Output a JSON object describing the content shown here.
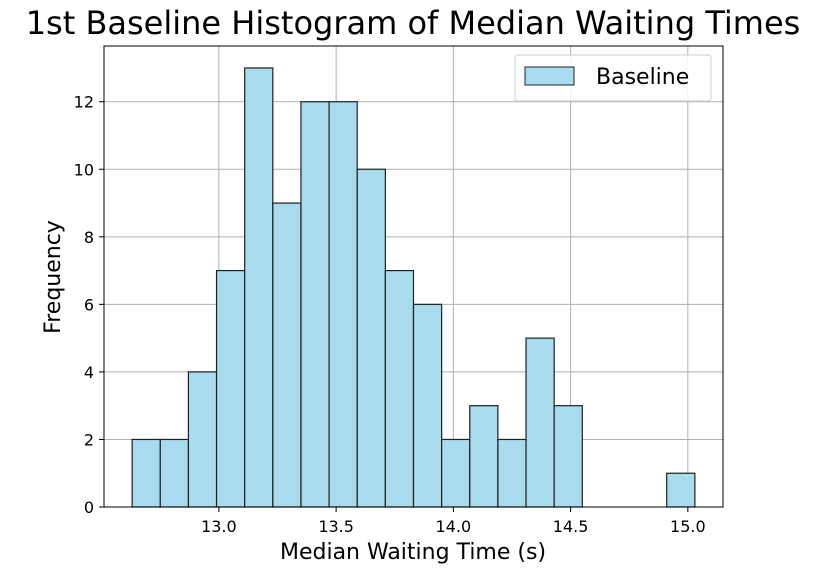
{
  "chart_data": {
    "type": "bar",
    "title": "1st Baseline Histogram of Median Waiting Times",
    "xlabel": "Median Waiting Time (s)",
    "ylabel": "Frequency",
    "xlim": [
      12.51,
      15.15
    ],
    "ylim": [
      0,
      13.65
    ],
    "grid": true,
    "legend_position": "top-right",
    "xticks": [
      "13.0",
      "13.5",
      "14.0",
      "14.5",
      "15.0"
    ],
    "yticks": [
      "0",
      "2",
      "4",
      "6",
      "8",
      "10",
      "12"
    ],
    "bin_start": 12.63,
    "bin_width": 0.12,
    "bins": [
      {
        "x0": 12.63,
        "x1": 12.75,
        "count": 2
      },
      {
        "x0": 12.75,
        "x1": 12.87,
        "count": 2
      },
      {
        "x0": 12.87,
        "x1": 12.99,
        "count": 4
      },
      {
        "x0": 12.99,
        "x1": 13.11,
        "count": 7
      },
      {
        "x0": 13.11,
        "x1": 13.23,
        "count": 13
      },
      {
        "x0": 13.23,
        "x1": 13.35,
        "count": 9
      },
      {
        "x0": 13.35,
        "x1": 13.47,
        "count": 12
      },
      {
        "x0": 13.47,
        "x1": 13.59,
        "count": 12
      },
      {
        "x0": 13.59,
        "x1": 13.71,
        "count": 10
      },
      {
        "x0": 13.71,
        "x1": 13.83,
        "count": 7
      },
      {
        "x0": 13.83,
        "x1": 13.95,
        "count": 6
      },
      {
        "x0": 13.95,
        "x1": 14.07,
        "count": 2
      },
      {
        "x0": 14.07,
        "x1": 14.19,
        "count": 3
      },
      {
        "x0": 14.19,
        "x1": 14.31,
        "count": 2
      },
      {
        "x0": 14.31,
        "x1": 14.43,
        "count": 5
      },
      {
        "x0": 14.43,
        "x1": 14.55,
        "count": 3
      },
      {
        "x0": 14.55,
        "x1": 14.67,
        "count": 0
      },
      {
        "x0": 14.67,
        "x1": 14.79,
        "count": 0
      },
      {
        "x0": 14.79,
        "x1": 14.91,
        "count": 0
      },
      {
        "x0": 14.91,
        "x1": 15.03,
        "count": 1
      }
    ],
    "series": [
      {
        "name": "Baseline",
        "color": "#a9dbee",
        "edge_color": "#1f1f1f"
      }
    ]
  }
}
